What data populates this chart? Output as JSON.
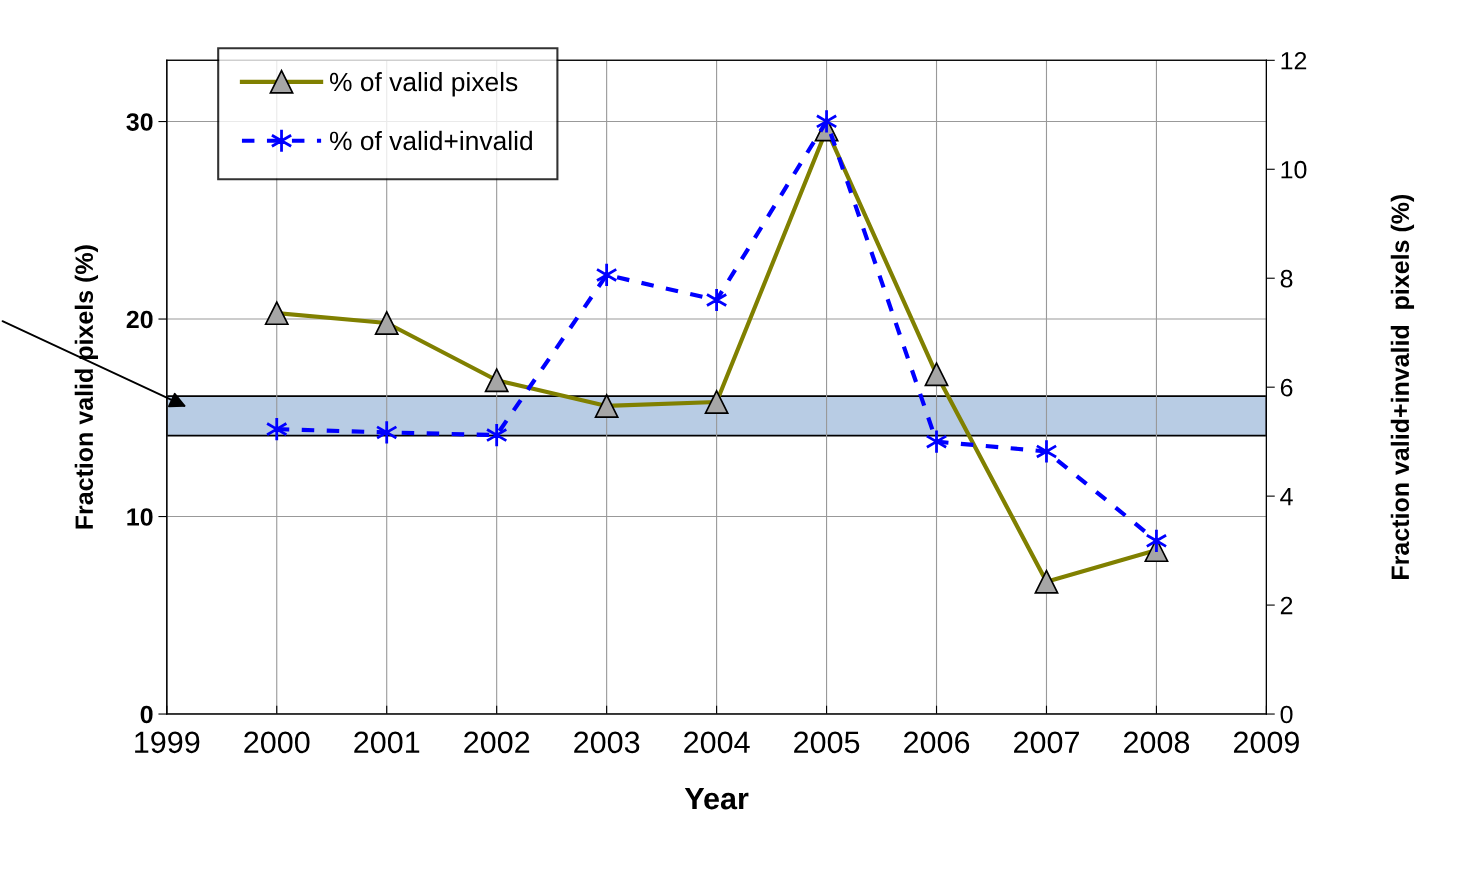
{
  "chart_data": {
    "type": "line",
    "xlabel": "Year",
    "ylabel": "Fraction valid pixels (%)",
    "y2label": "Fraction valid+invalid  pixels (%)",
    "x": [
      2000,
      2001,
      2002,
      2003,
      2004,
      2005,
      2006,
      2007,
      2008
    ],
    "series": [
      {
        "name": "% of valid pixels",
        "color": "#808000",
        "marker": "triangle",
        "line_style": "solid",
        "values": [
          20.3,
          19.8,
          16.9,
          15.6,
          15.8,
          29.6,
          17.2,
          6.7,
          8.3
        ]
      },
      {
        "name": "% of valid+invalid",
        "color": "#0000ff",
        "marker": "cross",
        "line_style": "dashed",
        "axis": "y2",
        "values": [
          5.23,
          5.17,
          5.12,
          8.06,
          7.6,
          10.88,
          5.0,
          4.82,
          3.18
        ]
      }
    ],
    "bands": [
      {
        "axis": "y",
        "from": 14.1,
        "to": 16.1,
        "color": "#b8cce4"
      }
    ],
    "xlim": [
      1999,
      2009
    ],
    "xticks": [
      1999,
      2000,
      2001,
      2002,
      2003,
      2004,
      2005,
      2006,
      2007,
      2008,
      2009
    ],
    "ylim": [
      0,
      33.1
    ],
    "yticks": [
      0,
      10,
      20,
      30
    ],
    "y2lim": [
      0,
      12
    ],
    "y2ticks": [
      0,
      2,
      4,
      6,
      8,
      10,
      12
    ],
    "grid": true,
    "legend": "top left"
  }
}
